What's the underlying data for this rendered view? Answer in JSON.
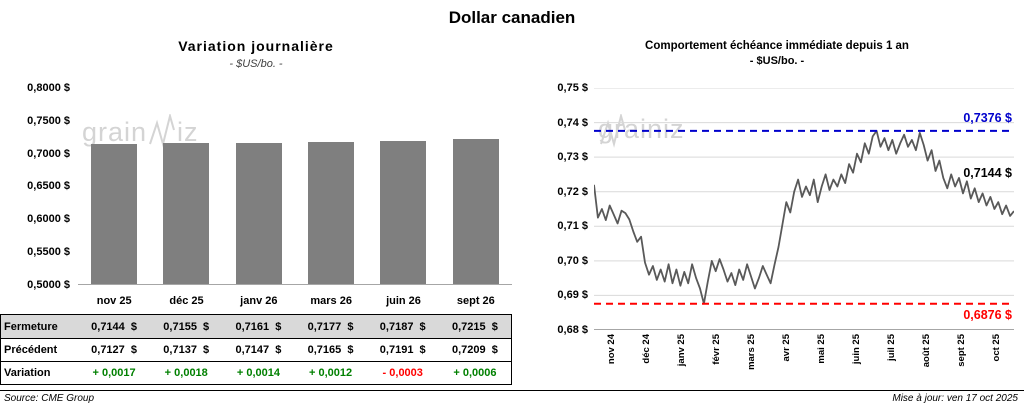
{
  "page": {
    "title": "Dollar canadien"
  },
  "watermark": {
    "prefix": "grain",
    "suffix": "iz"
  },
  "left_panel": {
    "title": "Variation  journalière",
    "subtitle": "- $US/bo. -"
  },
  "right_panel": {
    "title": "Comportement échéance immédiate depuis 1 an",
    "subtitle": "- $US/bo. -",
    "labels": {
      "high": "0,7376 $",
      "current": "0,7144 $",
      "low": "0,6876 $"
    }
  },
  "table": {
    "rows": [
      {
        "label": "Fermeture",
        "values": [
          "0,7144  $",
          "0,7155  $",
          "0,7161  $",
          "0,7177  $",
          "0,7187  $",
          "0,7215  $"
        ]
      },
      {
        "label": "Précédent",
        "values": [
          "0,7127  $",
          "0,7137  $",
          "0,7147  $",
          "0,7165  $",
          "0,7191  $",
          "0,7209  $"
        ]
      },
      {
        "label": "Variation",
        "values": [
          "+ 0,0017",
          "+ 0,0018",
          "+ 0,0014",
          "+ 0,0012",
          "- 0,0003",
          "+ 0,0006"
        ],
        "value_colors": [
          "green",
          "green",
          "green",
          "green",
          "red",
          "green"
        ]
      }
    ]
  },
  "footer": {
    "source": "Source: CME Group",
    "updated": "Mise à jour: ven 17 oct 2025"
  },
  "colors": {
    "bar": "#7f7f7f",
    "line": "#595959",
    "grid": "#d9d9d9",
    "high_line": "#0000cc",
    "low_line": "#ff0000",
    "green": "#008000",
    "red": "#ff0000",
    "table_header_bg": "#d9d9d9"
  },
  "chart_data": [
    {
      "type": "bar",
      "title": "Variation journalière",
      "subtitle": "- $US/bo. -",
      "categories": [
        "nov 25",
        "déc 25",
        "janv 26",
        "mars 26",
        "juin 26",
        "sept 26"
      ],
      "values": [
        0.7144,
        0.7155,
        0.7161,
        0.7177,
        0.7187,
        0.7215
      ],
      "xlabel": "",
      "ylabel": "$US/bo.",
      "ylim": [
        0.5,
        0.8
      ],
      "yticks": [
        "0,8000 $",
        "0,7500 $",
        "0,7000 $",
        "0,6500 $",
        "0,6000 $",
        "0,5500 $",
        "0,5000 $"
      ],
      "grid": false,
      "legend": "none"
    },
    {
      "type": "line",
      "title": "Comportement échéance immédiate depuis 1 an",
      "subtitle": "- $US/bo. -",
      "x_labels": [
        "nov 24",
        "déc 24",
        "janv 25",
        "févr 25",
        "mars 25",
        "avr 25",
        "mai 25",
        "juin 25",
        "juil 25",
        "août 25",
        "sept 25",
        "oct 25"
      ],
      "ylim": [
        0.68,
        0.75
      ],
      "yticks": [
        "0,75 $",
        "0,74 $",
        "0,73 $",
        "0,72 $",
        "0,71 $",
        "0,70 $",
        "0,69 $",
        "0,68 $"
      ],
      "reference_lines": [
        {
          "value": 0.7376,
          "label": "0,7376 $",
          "color": "#0000cc",
          "style": "dashed"
        },
        {
          "value": 0.6876,
          "label": "0,6876 $",
          "color": "#ff0000",
          "style": "dashed"
        }
      ],
      "last_value": 0.7144,
      "grid": true,
      "legend": "none",
      "values": [
        0.722,
        0.7125,
        0.715,
        0.7118,
        0.716,
        0.7135,
        0.7108,
        0.7145,
        0.7138,
        0.712,
        0.7085,
        0.7055,
        0.707,
        0.6995,
        0.696,
        0.6985,
        0.6945,
        0.6975,
        0.694,
        0.699,
        0.6935,
        0.6975,
        0.6928,
        0.6968,
        0.6935,
        0.699,
        0.695,
        0.692,
        0.6876,
        0.694,
        0.7,
        0.697,
        0.7005,
        0.6975,
        0.694,
        0.6965,
        0.693,
        0.6975,
        0.6945,
        0.699,
        0.6955,
        0.692,
        0.695,
        0.6985,
        0.696,
        0.6935,
        0.699,
        0.704,
        0.7105,
        0.717,
        0.714,
        0.72,
        0.7235,
        0.7185,
        0.7215,
        0.719,
        0.7235,
        0.717,
        0.7215,
        0.725,
        0.7205,
        0.7235,
        0.7215,
        0.725,
        0.7225,
        0.728,
        0.7255,
        0.731,
        0.7285,
        0.734,
        0.731,
        0.736,
        0.7376,
        0.733,
        0.7355,
        0.732,
        0.735,
        0.731,
        0.734,
        0.7365,
        0.733,
        0.735,
        0.732,
        0.737,
        0.7335,
        0.729,
        0.732,
        0.726,
        0.729,
        0.724,
        0.721,
        0.725,
        0.7215,
        0.724,
        0.7195,
        0.723,
        0.718,
        0.721,
        0.717,
        0.7195,
        0.716,
        0.7185,
        0.715,
        0.717,
        0.7135,
        0.716,
        0.713,
        0.7144
      ]
    }
  ]
}
